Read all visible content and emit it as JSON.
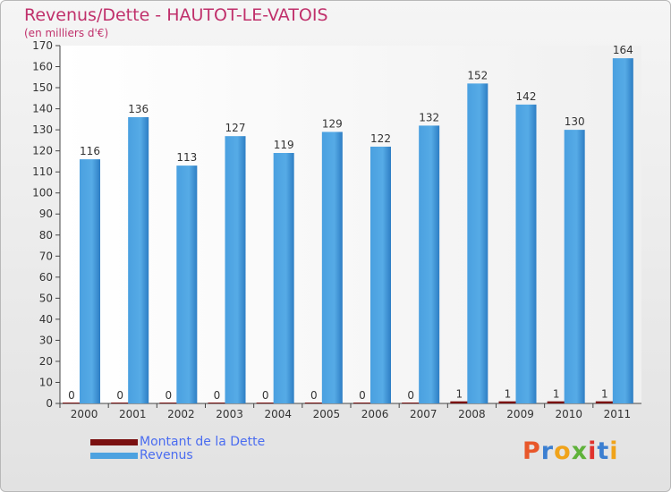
{
  "header": {
    "title": "Revenus/Dette - HAUTOT-LE-VATOIS",
    "subtitle": "(en milliers d'€)"
  },
  "legend": {
    "items": [
      {
        "label": "Montant de la Dette",
        "color": "#7a1010"
      },
      {
        "label": "Revenus",
        "color": "#4da2e0"
      }
    ]
  },
  "logo": {
    "text": "Proxiti",
    "colors": [
      "#e8572a",
      "#3b7fd1",
      "#f0a31a",
      "#5fb23a",
      "#e0322d",
      "#3b7fd1",
      "#f0a31a"
    ]
  },
  "chart_data": {
    "type": "bar",
    "categories": [
      "2000",
      "2001",
      "2002",
      "2003",
      "2004",
      "2005",
      "2006",
      "2007",
      "2008",
      "2009",
      "2010",
      "2011"
    ],
    "series": [
      {
        "name": "Montant de la Dette",
        "values": [
          0,
          0,
          0,
          0,
          0,
          0,
          0,
          0,
          1,
          1,
          1,
          1
        ],
        "color": "#7a1010"
      },
      {
        "name": "Revenus",
        "values": [
          116,
          136,
          113,
          127,
          119,
          129,
          122,
          132,
          152,
          142,
          130,
          164
        ],
        "color": "#4da2e0"
      }
    ],
    "ylim": [
      0,
      170
    ],
    "yticks": [
      0,
      10,
      20,
      30,
      40,
      50,
      60,
      70,
      80,
      90,
      100,
      110,
      120,
      130,
      140,
      150,
      160,
      170
    ],
    "title": "Revenus/Dette - HAUTOT-LE-VATOIS",
    "ylabel": "(en milliers d'€)",
    "grid": false
  }
}
